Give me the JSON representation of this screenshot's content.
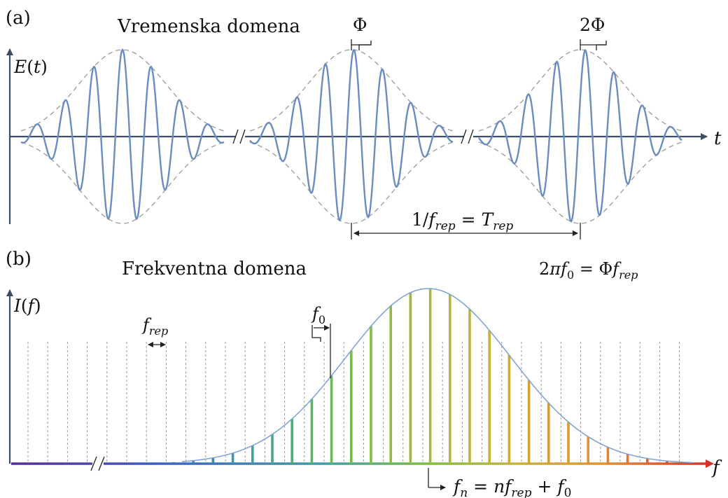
{
  "panel_a": {
    "label": "(a)",
    "title": "Vremenska domena",
    "y_axis": "E(t)",
    "x_axis": "t",
    "phase_1": "Φ",
    "phase_2": "2Φ",
    "period": "1/f_rep = T_rep",
    "pulses": [
      {
        "phase_shift": "0",
        "envelope_peak": 1.0
      },
      {
        "phase_shift": "Φ",
        "envelope_peak": 1.0
      },
      {
        "phase_shift": "2Φ",
        "envelope_peak": 1.0
      }
    ]
  },
  "panel_b": {
    "label": "(b)",
    "title": "Frekventna domena",
    "y_axis": "I(f)",
    "x_axis": "f",
    "relation": "2πf₀ = Φf_rep",
    "spacing": "f_rep",
    "offset": "f₀",
    "mode_equation": "f_n = nf_rep + f₀"
  },
  "colors": {
    "pulse": "#6a8cc0",
    "envelope": "#9a9a9a",
    "axis": "#3d4f66",
    "spectrum_gradient": [
      "#5a2a9a",
      "#3c5ec4",
      "#3e9ea2",
      "#7ebf3c",
      "#c4b43a",
      "#e4902e",
      "#d8302a"
    ]
  }
}
